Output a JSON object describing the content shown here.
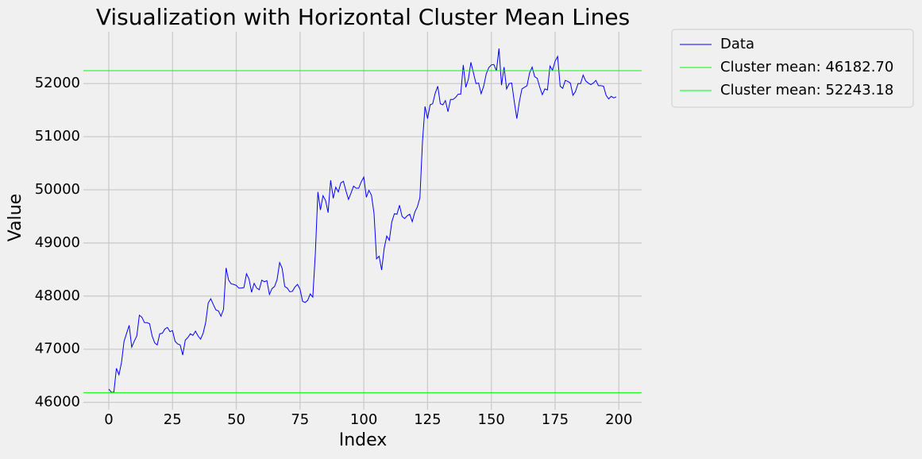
{
  "chart_data": {
    "type": "line",
    "title": "Visualization with Horizontal Cluster Mean Lines",
    "x_label": "Index",
    "y_label": "Value",
    "x": [
      0,
      1,
      2,
      3,
      4,
      5,
      6,
      7,
      8,
      9,
      10,
      11,
      12,
      13,
      14,
      15,
      16,
      17,
      18,
      19,
      20,
      21,
      22,
      23,
      24,
      25,
      26,
      27,
      28,
      29,
      30,
      31,
      32,
      33,
      34,
      35,
      36,
      37,
      38,
      39,
      40,
      41,
      42,
      43,
      44,
      45,
      46,
      47,
      48,
      49,
      50,
      51,
      52,
      53,
      54,
      55,
      56,
      57,
      58,
      59,
      60,
      61,
      62,
      63,
      64,
      65,
      66,
      67,
      68,
      69,
      70,
      71,
      72,
      73,
      74,
      75,
      76,
      77,
      78,
      79,
      80,
      81,
      82,
      83,
      84,
      85,
      86,
      87,
      88,
      89,
      90,
      91,
      92,
      93,
      94,
      95,
      96,
      97,
      98,
      99,
      100,
      101,
      102,
      103,
      104,
      105,
      106,
      107,
      108,
      109,
      110,
      111,
      112,
      113,
      114,
      115,
      116,
      117,
      118,
      119,
      120,
      121,
      122,
      123,
      124,
      125,
      126,
      127,
      128,
      129,
      130,
      131,
      132,
      133,
      134,
      135,
      136,
      137,
      138,
      139,
      140,
      141,
      142,
      143,
      144,
      145,
      146,
      147,
      148,
      149,
      150,
      151,
      152,
      153,
      154,
      155,
      156,
      157,
      158,
      159,
      160,
      161,
      162,
      163,
      164,
      165,
      166,
      167,
      168,
      169,
      170,
      171,
      172,
      173,
      174,
      175,
      176,
      177,
      178,
      179,
      180,
      181,
      182,
      183,
      184,
      185,
      186,
      187,
      188,
      189,
      190,
      191,
      192,
      193,
      194,
      195,
      196,
      197,
      198,
      199
    ],
    "series": [
      {
        "name": "Data",
        "color": "#0000ff",
        "values": [
          46250,
          46190,
          46190,
          46640,
          46520,
          46750,
          47150,
          47300,
          47450,
          47040,
          47150,
          47250,
          47640,
          47600,
          47500,
          47500,
          47480,
          47250,
          47120,
          47080,
          47290,
          47300,
          47380,
          47410,
          47330,
          47350,
          47150,
          47100,
          47080,
          46890,
          47170,
          47220,
          47290,
          47260,
          47340,
          47250,
          47190,
          47300,
          47500,
          47870,
          47950,
          47840,
          47740,
          47720,
          47620,
          47750,
          48530,
          48300,
          48230,
          48220,
          48200,
          48150,
          48150,
          48160,
          48420,
          48320,
          48070,
          48240,
          48150,
          48120,
          48300,
          48270,
          48290,
          48030,
          48140,
          48180,
          48310,
          48630,
          48520,
          48180,
          48150,
          48080,
          48090,
          48170,
          48220,
          48130,
          47900,
          47880,
          47920,
          48040,
          47980,
          48800,
          49960,
          49620,
          49890,
          49800,
          49570,
          50180,
          49840,
          50050,
          49960,
          50130,
          50160,
          49980,
          49820,
          49940,
          50070,
          50030,
          50030,
          50150,
          50240,
          49860,
          49990,
          49900,
          49560,
          48700,
          48750,
          48490,
          48900,
          49130,
          49050,
          49400,
          49550,
          49540,
          49710,
          49500,
          49460,
          49510,
          49540,
          49400,
          49580,
          49680,
          49850,
          50900,
          51570,
          51340,
          51600,
          51620,
          51820,
          51950,
          51620,
          51600,
          51680,
          51470,
          51700,
          51700,
          51740,
          51800,
          51800,
          52350,
          51930,
          52080,
          52400,
          52200,
          52000,
          52010,
          51810,
          51950,
          52180,
          52300,
          52350,
          52360,
          52240,
          52660,
          51970,
          52310,
          51900,
          52000,
          52010,
          51660,
          51340,
          51660,
          51900,
          51930,
          51960,
          52200,
          52310,
          52130,
          52100,
          51930,
          51790,
          51900,
          51880,
          52330,
          52250,
          52420,
          52510,
          51950,
          51910,
          52060,
          52040,
          52010,
          51780,
          51850,
          52000,
          52000,
          52160,
          52050,
          52010,
          51980,
          52010,
          52060,
          51960,
          51960,
          51950,
          51780,
          51710,
          51760,
          51730,
          51750
        ]
      }
    ],
    "hlines": [
      {
        "name": "Cluster mean: 46182.70",
        "value": 46182.7,
        "color": "#00ff00"
      },
      {
        "name": "Cluster mean: 52243.18",
        "value": 52243.18,
        "color": "#00ff00"
      }
    ],
    "xlim": [
      -9.95,
      208.95
    ],
    "ylim": [
      45860,
      52975
    ],
    "xticks": [
      0,
      25,
      50,
      75,
      100,
      125,
      150,
      175,
      200
    ],
    "yticks": [
      46000,
      47000,
      48000,
      49000,
      50000,
      51000,
      52000
    ],
    "grid": true,
    "legend": "outside upper right"
  }
}
